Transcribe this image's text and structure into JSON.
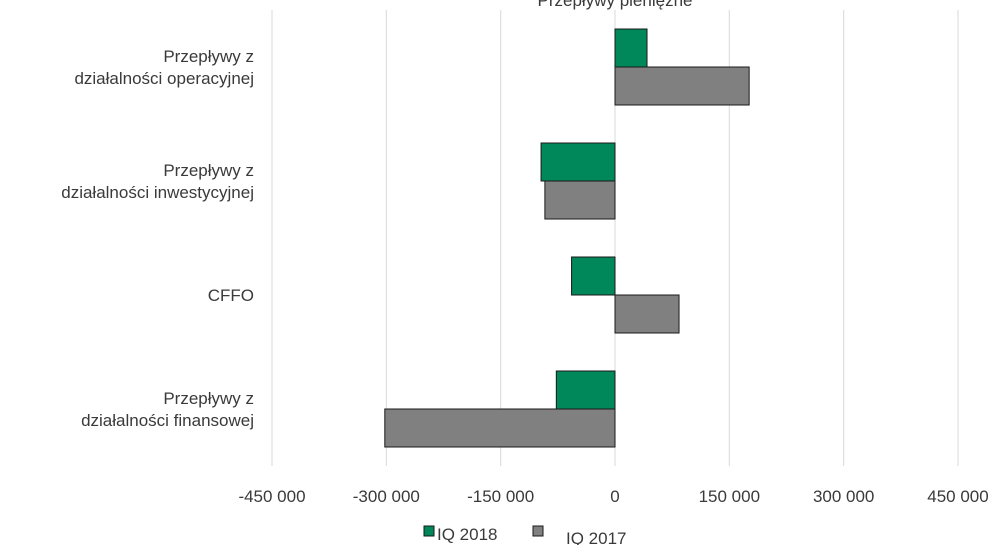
{
  "chart_data": {
    "type": "bar",
    "orientation": "horizontal",
    "title": "Przepływy pieniężne",
    "categories": [
      [
        "Przepływy z",
        "działalności operacyjnej"
      ],
      [
        "Przepływy z",
        "działalności inwestycyjnej"
      ],
      [
        "CFFO"
      ],
      [
        "Przepływy z",
        "działalności finansowej"
      ]
    ],
    "series": [
      {
        "name": "IQ 2018",
        "color": "#00875a",
        "values": [
          42000,
          -97000,
          -57000,
          -77000
        ]
      },
      {
        "name": "IQ 2017",
        "color": "#808080",
        "values": [
          176000,
          -92000,
          84000,
          -302000
        ]
      }
    ],
    "xlim": [
      -450000,
      450000
    ],
    "xticks": [
      -450000,
      -300000,
      -150000,
      0,
      150000,
      300000,
      450000
    ],
    "xtick_labels": [
      "-450 000",
      "-300 000",
      "-150 000",
      "0",
      "150 000",
      "300 000",
      "450 000"
    ],
    "grid": true,
    "legend_position": "bottom"
  }
}
